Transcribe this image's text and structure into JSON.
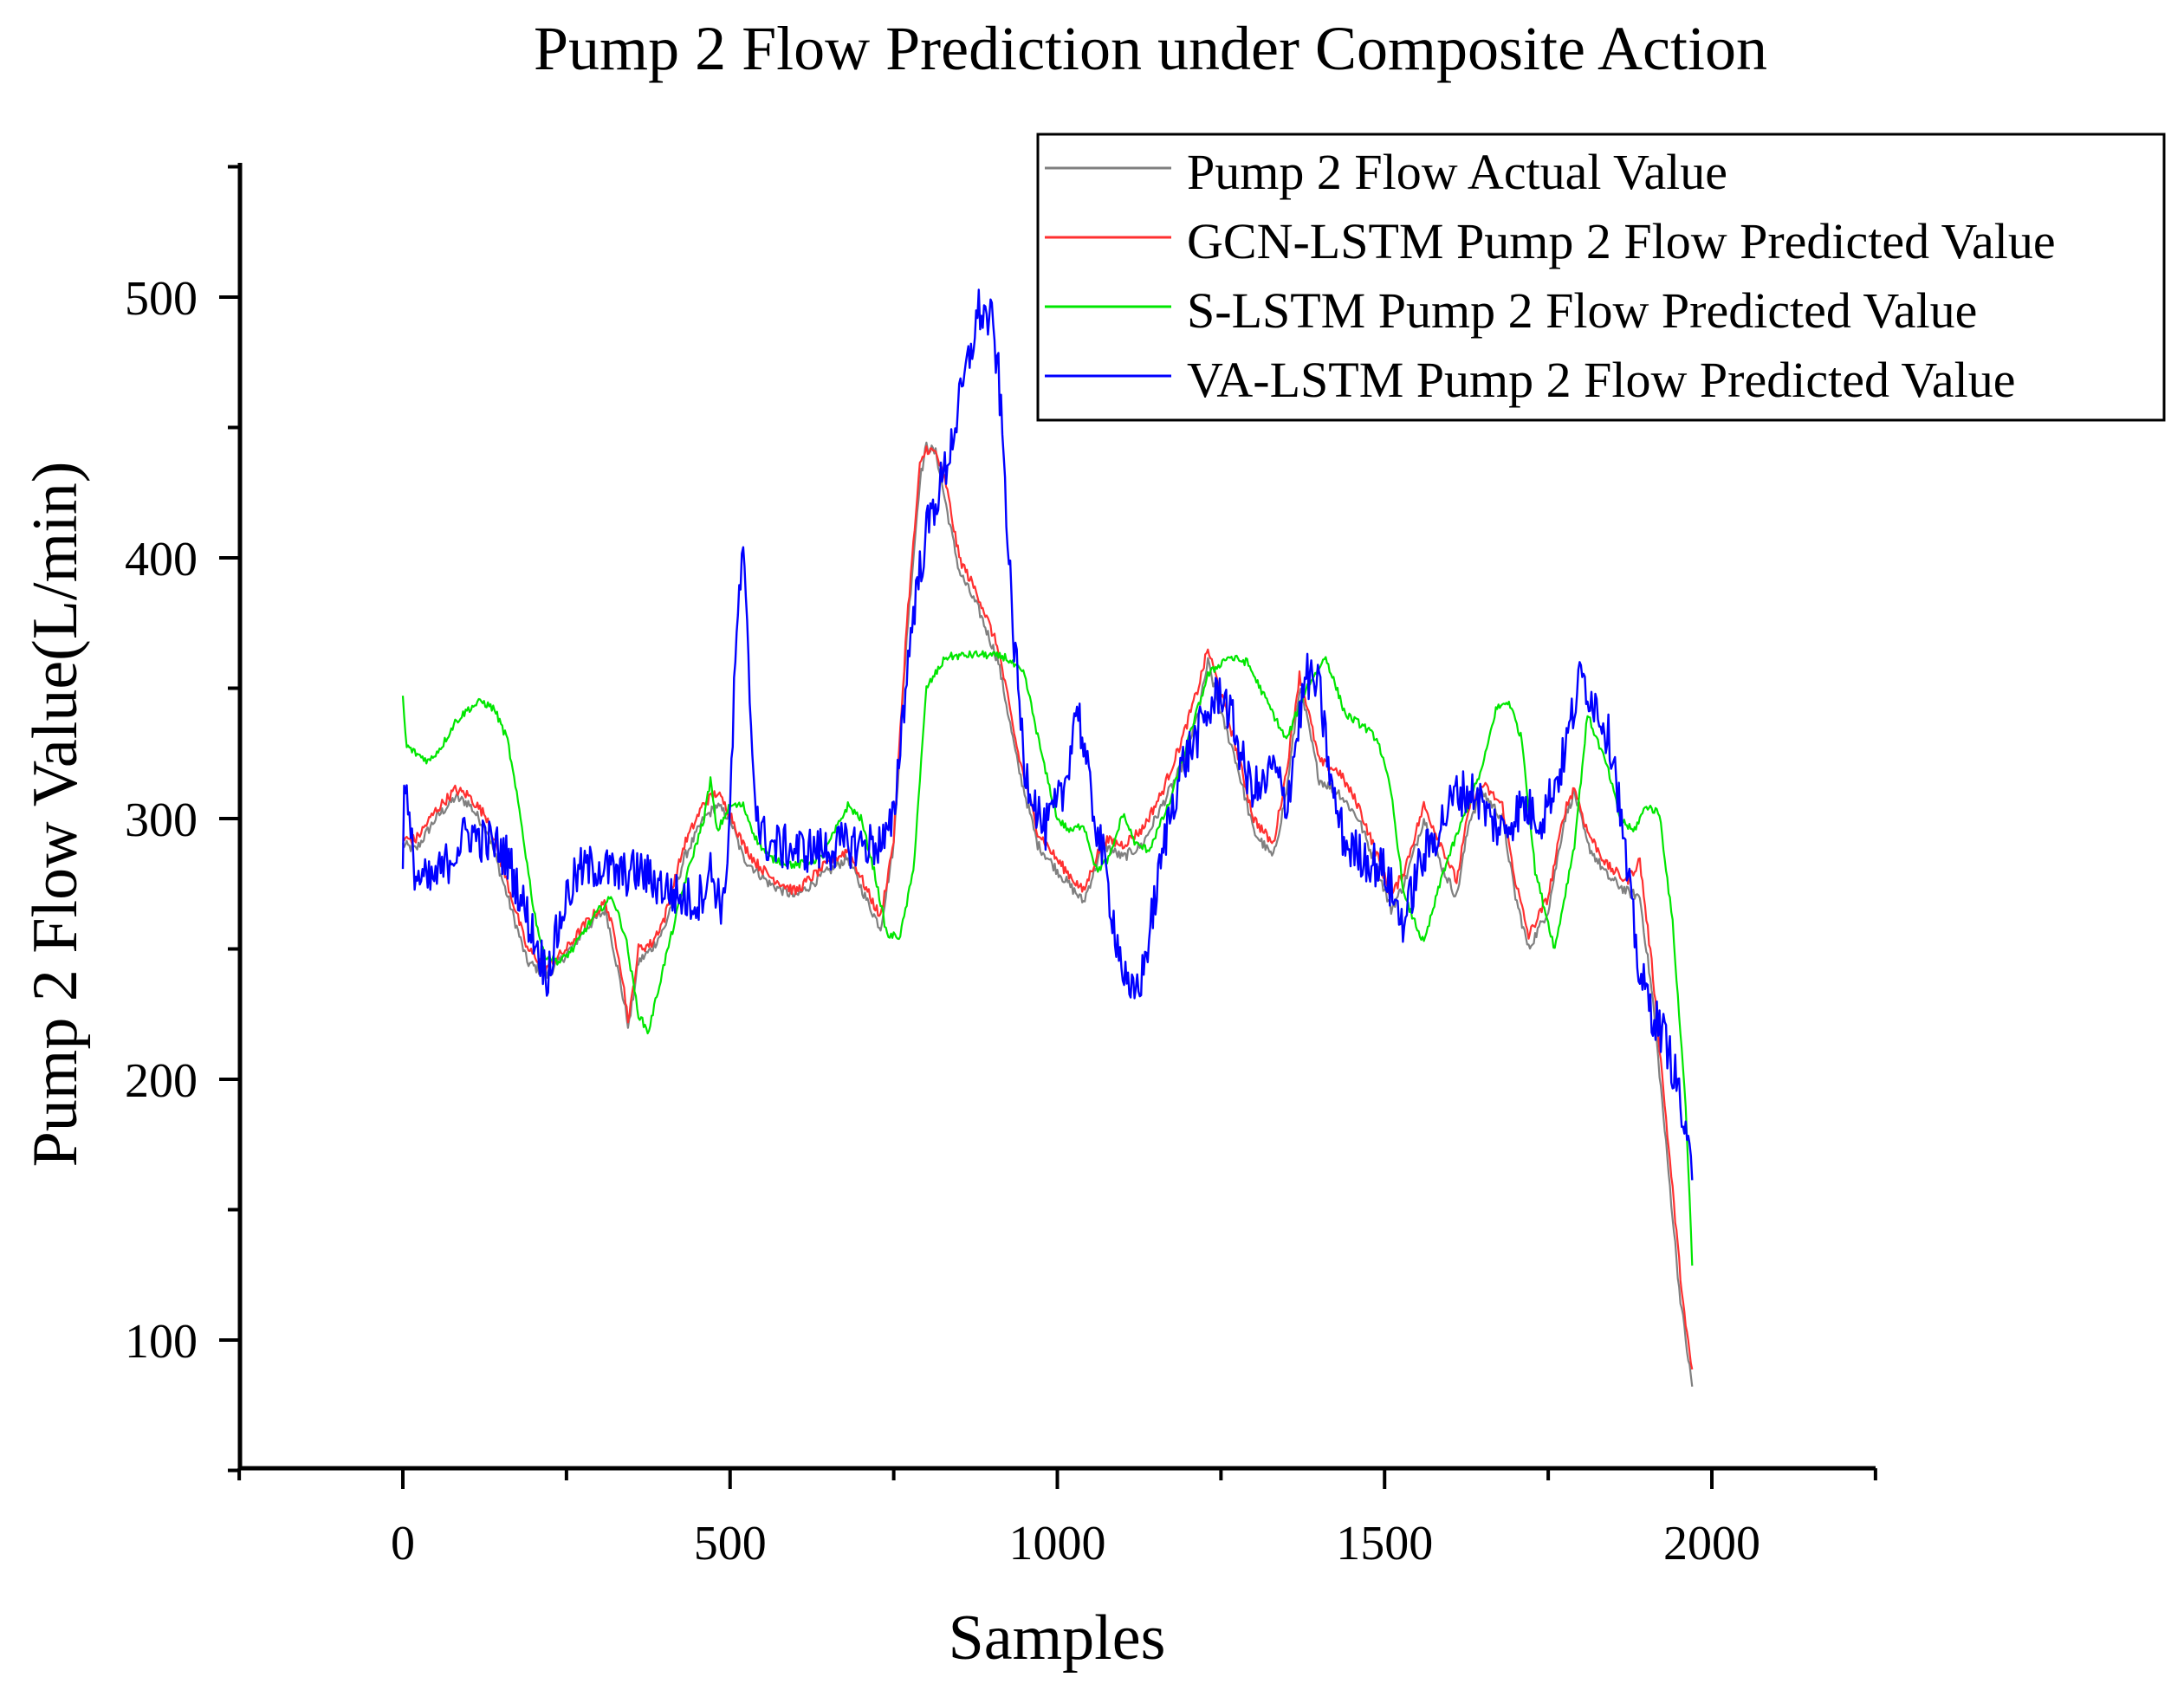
{
  "chart_data": {
    "type": "line",
    "title": "Pump 2 Flow Prediction under Composite Action",
    "xlabel": "Samples",
    "ylabel": "Pump 2 Flow Value(L/min)",
    "xlim": [
      -250,
      2250
    ],
    "ylim": [
      50,
      550
    ],
    "x_ticks": [
      0,
      500,
      1000,
      1500,
      2000
    ],
    "x_tick_labels": [
      "0",
      "500",
      "1000",
      "1500",
      "2000"
    ],
    "y_ticks": [
      100,
      200,
      300,
      400,
      500
    ],
    "y_tick_labels": [
      "100",
      "200",
      "300",
      "400",
      "500"
    ],
    "legend_position": "top-right",
    "grid": false,
    "series": [
      {
        "name": "Pump 2 Flow Actual Value",
        "color": "#808080",
        "noise": 2,
        "x": [
          0,
          20,
          50,
          80,
          100,
          130,
          160,
          190,
          220,
          250,
          280,
          310,
          330,
          345,
          360,
          380,
          400,
          430,
          460,
          480,
          500,
          520,
          540,
          560,
          600,
          640,
          680,
          710,
          730,
          750,
          770,
          790,
          800,
          815,
          830,
          850,
          880,
          910,
          940,
          970,
          1000,
          1040,
          1070,
          1100,
          1130,
          1160,
          1190,
          1215,
          1230,
          1250,
          1270,
          1300,
          1330,
          1350,
          1370,
          1380,
          1400,
          1430,
          1460,
          1490,
          1510,
          1530,
          1560,
          1590,
          1610,
          1630,
          1650,
          1680,
          1700,
          1720,
          1750,
          1775,
          1790,
          1810,
          1840,
          1870,
          1890,
          1910,
          1930,
          1950,
          1960,
          1970
        ],
        "y": [
          290,
          288,
          300,
          308,
          306,
          295,
          270,
          245,
          240,
          248,
          258,
          265,
          240,
          220,
          245,
          250,
          258,
          285,
          300,
          305,
          300,
          285,
          280,
          275,
          270,
          278,
          285,
          268,
          258,
          290,
          370,
          430,
          443,
          440,
          420,
          395,
          380,
          360,
          320,
          290,
          280,
          268,
          290,
          285,
          290,
          305,
          320,
          340,
          360,
          340,
          325,
          295,
          285,
          310,
          350,
          340,
          315,
          310,
          300,
          280,
          265,
          275,
          300,
          280,
          270,
          300,
          310,
          300,
          270,
          250,
          265,
          300,
          310,
          290,
          278,
          272,
          270,
          230,
          175,
          120,
          100,
          82
        ]
      },
      {
        "name": "GCN-LSTM Pump 2 Flow Predicted Value",
        "color": "#ff3030",
        "noise": 2,
        "x": [
          0,
          20,
          50,
          80,
          100,
          130,
          160,
          190,
          220,
          250,
          280,
          310,
          330,
          345,
          360,
          380,
          400,
          430,
          460,
          480,
          500,
          520,
          540,
          560,
          600,
          640,
          680,
          710,
          730,
          750,
          770,
          790,
          800,
          815,
          830,
          850,
          880,
          910,
          940,
          970,
          1000,
          1040,
          1070,
          1100,
          1130,
          1160,
          1190,
          1215,
          1230,
          1250,
          1270,
          1300,
          1330,
          1350,
          1370,
          1380,
          1400,
          1430,
          1460,
          1490,
          1510,
          1530,
          1560,
          1590,
          1610,
          1630,
          1650,
          1680,
          1700,
          1720,
          1750,
          1775,
          1790,
          1810,
          1840,
          1870,
          1890,
          1910,
          1930,
          1950,
          1960,
          1970
        ],
        "y": [
          292,
          292,
          303,
          311,
          309,
          300,
          275,
          250,
          243,
          250,
          260,
          268,
          248,
          222,
          250,
          252,
          262,
          290,
          306,
          310,
          302,
          290,
          283,
          278,
          272,
          281,
          288,
          272,
          262,
          292,
          375,
          435,
          442,
          440,
          428,
          400,
          385,
          365,
          325,
          295,
          284,
          272,
          292,
          290,
          296,
          310,
          330,
          350,
          365,
          348,
          330,
          300,
          290,
          318,
          355,
          345,
          322,
          318,
          305,
          285,
          270,
          280,
          305,
          288,
          276,
          305,
          313,
          305,
          276,
          255,
          270,
          303,
          312,
          295,
          282,
          276,
          284,
          240,
          185,
          130,
          105,
          88
        ]
      },
      {
        "name": "S-LSTM Pump 2 Flow Predicted Value",
        "color": "#00e600",
        "noise": 1.5,
        "x": [
          0,
          5,
          20,
          40,
          60,
          80,
          100,
          120,
          140,
          160,
          180,
          200,
          215,
          240,
          260,
          280,
          300,
          320,
          340,
          360,
          375,
          400,
          430,
          460,
          470,
          480,
          500,
          520,
          540,
          560,
          600,
          640,
          660,
          680,
          700,
          720,
          740,
          760,
          780,
          800,
          830,
          880,
          920,
          950,
          980,
          1000,
          1020,
          1040,
          1060,
          1080,
          1100,
          1120,
          1140,
          1170,
          1200,
          1230,
          1260,
          1290,
          1320,
          1350,
          1380,
          1410,
          1440,
          1470,
          1490,
          1510,
          1530,
          1560,
          1590,
          1620,
          1650,
          1670,
          1690,
          1710,
          1730,
          1760,
          1790,
          1810,
          1840,
          1860,
          1880,
          1900,
          1920,
          1940,
          1960,
          1970
        ],
        "y": [
          347,
          328,
          325,
          322,
          328,
          337,
          342,
          345,
          342,
          330,
          300,
          265,
          248,
          245,
          250,
          258,
          265,
          270,
          255,
          225,
          218,
          245,
          275,
          300,
          315,
          295,
          305,
          305,
          292,
          285,
          282,
          285,
          295,
          305,
          300,
          280,
          255,
          255,
          280,
          350,
          362,
          363,
          362,
          355,
          320,
          300,
          295,
          298,
          280,
          285,
          302,
          290,
          288,
          305,
          330,
          355,
          362,
          360,
          345,
          330,
          350,
          362,
          340,
          335,
          330,
          310,
          270,
          252,
          280,
          300,
          320,
          342,
          345,
          330,
          280,
          250,
          290,
          340,
          320,
          300,
          295,
          305,
          302,
          260,
          190,
          130
        ]
      },
      {
        "name": "VA-LSTM Pump 2 Flow Predicted Value",
        "color": "#0000ff",
        "noise": 9,
        "x": [
          0,
          2,
          10,
          20,
          40,
          60,
          80,
          100,
          120,
          140,
          160,
          180,
          200,
          220,
          230,
          250,
          270,
          300,
          330,
          360,
          390,
          420,
          450,
          470,
          490,
          500,
          505,
          512,
          520,
          528,
          535,
          545,
          560,
          600,
          640,
          680,
          720,
          740,
          750,
          760,
          780,
          800,
          830,
          860,
          880,
          900,
          910,
          920,
          930,
          950,
          980,
          1010,
          1030,
          1050,
          1070,
          1090,
          1110,
          1130,
          1150,
          1170,
          1190,
          1210,
          1230,
          1250,
          1270,
          1290,
          1310,
          1330,
          1350,
          1380,
          1400,
          1420,
          1440,
          1470,
          1500,
          1520,
          1530,
          1550,
          1580,
          1610,
          1640,
          1660,
          1680,
          1710,
          1740,
          1770,
          1800,
          1830,
          1850,
          1870,
          1890,
          1910,
          1930,
          1950,
          1960,
          1970
        ],
        "y": [
          275,
          320,
          295,
          278,
          275,
          280,
          288,
          295,
          292,
          290,
          285,
          270,
          255,
          240,
          250,
          270,
          280,
          282,
          278,
          280,
          275,
          270,
          268,
          280,
          265,
          305,
          340,
          380,
          400,
          360,
          320,
          295,
          290,
          288,
          288,
          290,
          290,
          292,
          300,
          330,
          380,
          410,
          435,
          470,
          495,
          490,
          470,
          430,
          380,
          320,
          295,
          310,
          345,
          310,
          285,
          255,
          230,
          240,
          270,
          300,
          320,
          330,
          340,
          350,
          335,
          315,
          310,
          320,
          305,
          355,
          350,
          310,
          290,
          285,
          280,
          265,
          260,
          280,
          295,
          310,
          310,
          300,
          295,
          305,
          300,
          320,
          355,
          340,
          325,
          280,
          240,
          225,
          215,
          195,
          175,
          165
        ]
      }
    ]
  }
}
